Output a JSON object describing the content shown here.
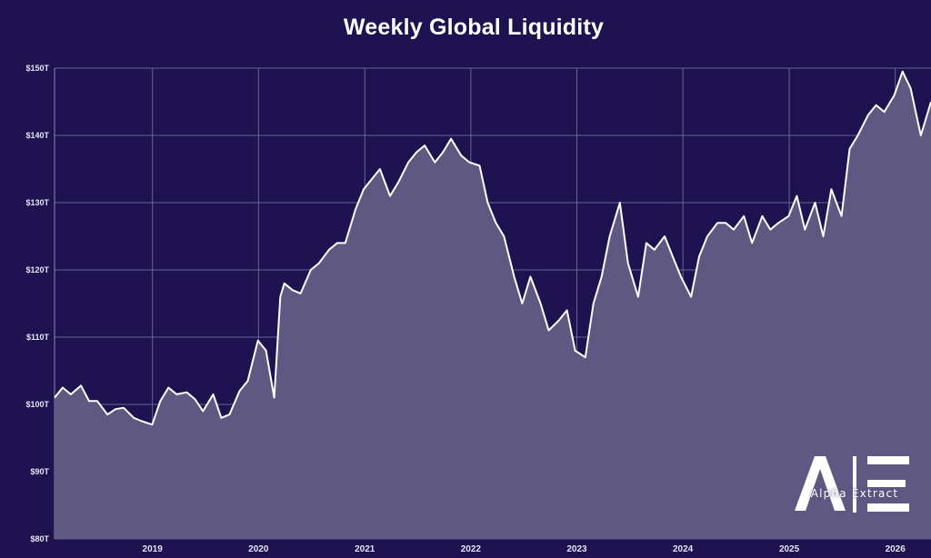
{
  "chart_data": {
    "type": "area",
    "title": "Weekly Global Liquidity",
    "xlabel": "",
    "ylabel": "",
    "x_tick_labels": [
      "2019",
      "2020",
      "2021",
      "2022",
      "2023",
      "2024",
      "2025",
      "2026"
    ],
    "y_tick_labels": [
      "$80T",
      "$90T",
      "$100T",
      "$110T",
      "$120T",
      "$130T",
      "$140T",
      "$150T"
    ],
    "y_ticks": [
      80,
      90,
      100,
      110,
      120,
      130,
      140,
      150
    ],
    "ylim": [
      80,
      150
    ],
    "xlim": [
      "2018-01-29",
      "2026-05-04"
    ],
    "grid": true,
    "legend": "none",
    "colors": {
      "background": "#1e1250",
      "line": "#ffffff",
      "fill": "#5f5883",
      "grid": "#6a6296"
    },
    "series": [
      {
        "x": [
          "2018-01-29",
          "2018-02-26",
          "2018-03-26",
          "2018-04-30",
          "2018-05-28",
          "2018-06-25",
          "2018-07-30",
          "2018-08-27",
          "2018-09-24",
          "2018-10-29",
          "2018-11-26",
          "2018-12-31",
          "2019-01-28",
          "2019-02-25",
          "2019-03-25",
          "2019-04-29",
          "2019-05-27",
          "2019-06-24",
          "2019-07-29",
          "2019-08-26",
          "2019-09-23",
          "2019-10-28",
          "2019-11-25",
          "2019-12-30",
          "2020-01-27",
          "2020-02-24",
          "2020-03-16",
          "2020-03-30",
          "2020-04-27",
          "2020-05-25",
          "2020-06-29",
          "2020-07-27",
          "2020-08-31",
          "2020-09-28",
          "2020-10-26",
          "2020-11-30",
          "2020-12-28",
          "2021-01-25",
          "2021-02-22",
          "2021-03-29",
          "2021-04-26",
          "2021-05-31",
          "2021-06-28",
          "2021-07-26",
          "2021-08-30",
          "2021-09-27",
          "2021-10-25",
          "2021-11-29",
          "2021-12-27",
          "2022-01-31",
          "2022-02-28",
          "2022-03-28",
          "2022-04-25",
          "2022-05-30",
          "2022-06-27",
          "2022-07-25",
          "2022-08-29",
          "2022-09-26",
          "2022-10-31",
          "2022-11-28",
          "2022-12-26",
          "2023-01-30",
          "2023-02-27",
          "2023-03-27",
          "2023-04-24",
          "2023-05-29",
          "2023-06-26",
          "2023-07-31",
          "2023-08-28",
          "2023-09-25",
          "2023-10-30",
          "2023-11-27",
          "2023-12-25",
          "2024-01-29",
          "2024-02-26",
          "2024-03-25",
          "2024-04-29",
          "2024-05-27",
          "2024-06-24",
          "2024-07-29",
          "2024-08-26",
          "2024-09-30",
          "2024-10-28",
          "2024-11-25",
          "2024-12-30",
          "2025-01-27",
          "2025-02-24",
          "2025-03-31",
          "2025-04-28",
          "2025-05-26",
          "2025-06-30",
          "2025-07-28",
          "2025-08-25",
          "2025-09-29",
          "2025-10-27",
          "2025-11-24",
          "2025-12-29",
          "2026-01-26",
          "2026-02-23",
          "2026-03-30",
          "2026-04-27",
          "2026-05-04"
        ],
        "values": [
          101,
          102.5,
          101.5,
          102.8,
          100.5,
          100.5,
          98.5,
          99.3,
          99.5,
          98,
          97.5,
          97,
          100.5,
          102.5,
          101.5,
          101.8,
          100.8,
          99,
          101.5,
          98,
          98.5,
          102,
          103.5,
          109.5,
          108,
          101,
          116,
          118,
          117,
          116.5,
          120,
          121,
          123,
          124,
          124,
          129,
          132,
          133.5,
          135,
          131,
          133,
          136,
          137.5,
          138.5,
          136,
          137.5,
          139.5,
          137,
          136,
          135.5,
          130,
          127,
          125,
          119,
          115,
          119,
          115,
          111,
          112.5,
          114,
          108,
          107,
          115,
          119,
          125,
          130,
          121,
          116,
          124,
          123,
          125,
          122,
          119,
          116,
          122,
          125,
          127,
          127,
          126,
          128,
          124,
          128,
          126,
          127,
          128,
          131,
          126,
          130,
          125,
          132,
          128,
          138,
          140,
          143,
          144.5,
          143.5,
          146,
          149.5,
          147,
          140,
          144,
          145
        ]
      }
    ]
  },
  "watermark": {
    "text": "Alpha Extract"
  }
}
